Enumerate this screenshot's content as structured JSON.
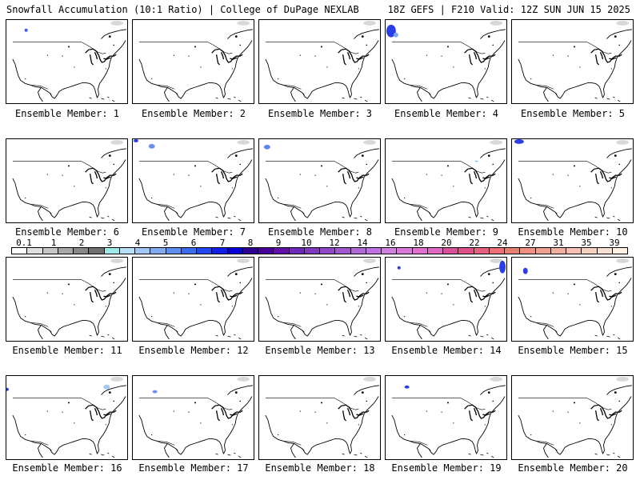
{
  "header": {
    "left": "Snowfall Accumulation (10:1 Ratio) | College of DuPage NEXLAB",
    "right": "18Z GEFS | F210 Valid: 12Z SUN JUN 15 2025"
  },
  "panels": [
    {
      "label": "Ensemble Member: 1",
      "snow": [
        {
          "cx": 25,
          "cy": 13,
          "rx": 2,
          "ry": 2,
          "color": "#3a5bf5"
        }
      ]
    },
    {
      "label": "Ensemble Member: 2",
      "snow": []
    },
    {
      "label": "Ensemble Member: 3",
      "snow": []
    },
    {
      "label": "Ensemble Member: 4",
      "snow": [
        {
          "cx": 7,
          "cy": 14,
          "rx": 6,
          "ry": 8,
          "color": "#2a3ee8"
        },
        {
          "cx": 13,
          "cy": 19,
          "rx": 3,
          "ry": 3,
          "color": "#7aa6f0"
        }
      ]
    },
    {
      "label": "Ensemble Member: 5",
      "snow": []
    },
    {
      "label": "Ensemble Member: 6",
      "snow": []
    },
    {
      "label": "Ensemble Member: 7",
      "snow": [
        {
          "cx": 24,
          "cy": 9,
          "rx": 4,
          "ry": 3,
          "color": "#6b8ff2"
        },
        {
          "cx": 4,
          "cy": 2,
          "rx": 3,
          "ry": 2,
          "color": "#2a3ee8"
        }
      ]
    },
    {
      "label": "Ensemble Member: 8",
      "snow": [
        {
          "cx": 10,
          "cy": 10,
          "rx": 4,
          "ry": 3,
          "color": "#5f86f0"
        }
      ]
    },
    {
      "label": "Ensemble Member: 9",
      "snow": [
        {
          "cx": 115,
          "cy": 28,
          "rx": 2,
          "ry": 1,
          "color": "#9ec0f0"
        }
      ]
    },
    {
      "label": "Ensemble Member: 10",
      "snow": [
        {
          "cx": 9,
          "cy": 3,
          "rx": 6,
          "ry": 3,
          "color": "#2a3ee8"
        }
      ]
    },
    {
      "label": "Ensemble Member: 11",
      "snow": []
    },
    {
      "label": "Ensemble Member: 12",
      "snow": []
    },
    {
      "label": "Ensemble Member: 13",
      "snow": []
    },
    {
      "label": "Ensemble Member: 14",
      "snow": [
        {
          "cx": 148,
          "cy": 12,
          "rx": 4,
          "ry": 8,
          "color": "#2a3ee8"
        },
        {
          "cx": 17,
          "cy": 13,
          "rx": 2,
          "ry": 2,
          "color": "#2a3ee8"
        }
      ]
    },
    {
      "label": "Ensemble Member: 15",
      "snow": [
        {
          "cx": 17,
          "cy": 17,
          "rx": 3,
          "ry": 4,
          "color": "#2a3ee8"
        }
      ]
    },
    {
      "label": "Ensemble Member: 16",
      "snow": [
        {
          "cx": 1,
          "cy": 17,
          "rx": 2,
          "ry": 2,
          "color": "#2a3ee8"
        },
        {
          "cx": 127,
          "cy": 14,
          "rx": 4,
          "ry": 3,
          "color": "#a8c8f0"
        }
      ]
    },
    {
      "label": "Ensemble Member: 17",
      "snow": [
        {
          "cx": 28,
          "cy": 20,
          "rx": 3,
          "ry": 2,
          "color": "#6b8ff2"
        }
      ]
    },
    {
      "label": "Ensemble Member: 18",
      "snow": []
    },
    {
      "label": "Ensemble Member: 19",
      "snow": [
        {
          "cx": 27,
          "cy": 14,
          "rx": 3,
          "ry": 2,
          "color": "#2a3ee8"
        }
      ]
    },
    {
      "label": "Ensemble Member: 20",
      "snow": []
    }
  ],
  "colorbar": {
    "labels": [
      "0.1",
      "1",
      "2",
      "3",
      "4",
      "5",
      "6",
      "7",
      "8",
      "9",
      "10",
      "12",
      "14",
      "16",
      "18",
      "20",
      "22",
      "24",
      "27",
      "31",
      "35",
      "39"
    ],
    "colors": [
      "#ffffff",
      "#e0e0e0",
      "#c8c8c8",
      "#a8a8a8",
      "#888888",
      "#707070",
      "#9fe8e8",
      "#b8e0f8",
      "#a0c8f4",
      "#82aaf0",
      "#5e8ef0",
      "#3a6cf0",
      "#2048f0",
      "#1020e8",
      "#0800d8",
      "#2c0090",
      "#480098",
      "#6010a8",
      "#7028b8",
      "#8038c0",
      "#9048c8",
      "#a058d0",
      "#b068d8",
      "#c070e0",
      "#d080e0",
      "#d878d8",
      "#e070d0",
      "#e068c0",
      "#d85098",
      "#e05088",
      "#e86080",
      "#f07078",
      "#e88070",
      "#f09080",
      "#f0a090",
      "#f0b0a0",
      "#f8c0b0",
      "#f8d0c0",
      "#f8e0d0",
      "#fff0e6"
    ]
  }
}
